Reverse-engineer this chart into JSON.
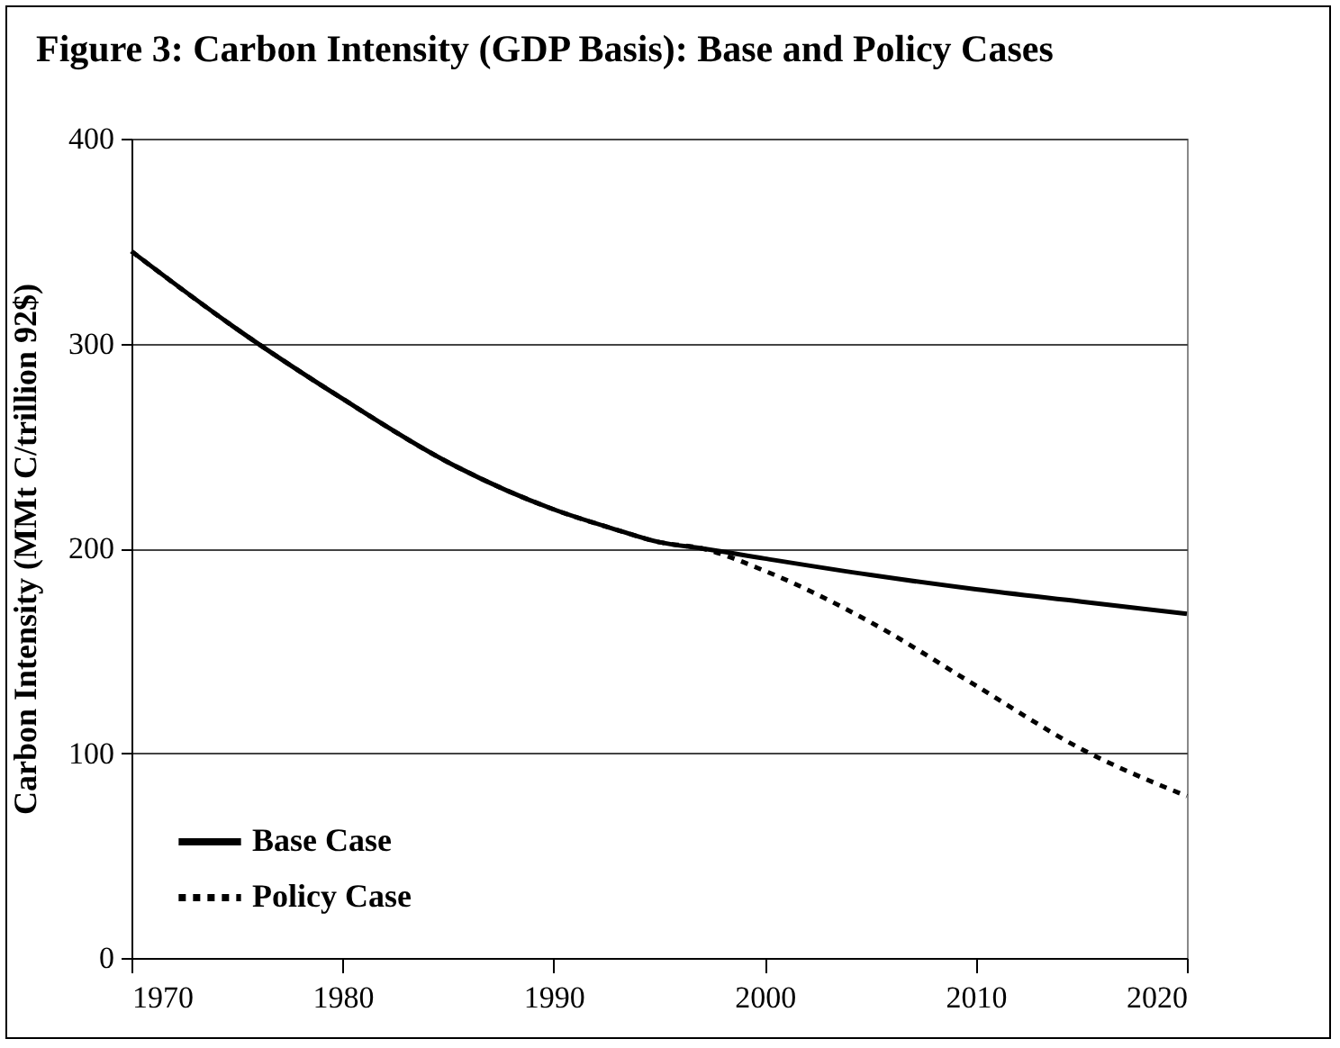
{
  "chart_data": {
    "type": "line",
    "title": "Figure 3: Carbon Intensity (GDP Basis): Base and Policy Cases",
    "ylabel": "Carbon Intensity (MMt C/trillion 92$)",
    "series": [
      {
        "name": "Base Case",
        "color": "#000000",
        "line_style": "solid",
        "x": [
          1970,
          1975,
          1980,
          1985,
          1990,
          1993,
          1995,
          1997,
          2000,
          2005,
          2010,
          2015,
          2020
        ],
        "values": [
          345,
          307,
          273,
          242,
          219,
          209,
          203,
          200,
          195,
          187,
          180,
          174,
          168
        ]
      },
      {
        "name": "Policy Case",
        "color": "#000000",
        "line_style": "dotted",
        "x": [
          1970,
          1975,
          1980,
          1985,
          1990,
          1993,
          1995,
          1997,
          2000,
          2005,
          2010,
          2015,
          2020
        ],
        "values": [
          345,
          307,
          273,
          242,
          219,
          209,
          203,
          200,
          189,
          164,
          133,
          102,
          79
        ]
      }
    ],
    "xlim": [
      1970,
      2020
    ],
    "xticks": [
      1970,
      1980,
      1990,
      2000,
      2010,
      2020
    ],
    "ylim": [
      0,
      400
    ],
    "yticks": [
      0,
      100,
      200,
      300,
      400
    ],
    "grid": "y",
    "legend": "bottom left"
  }
}
